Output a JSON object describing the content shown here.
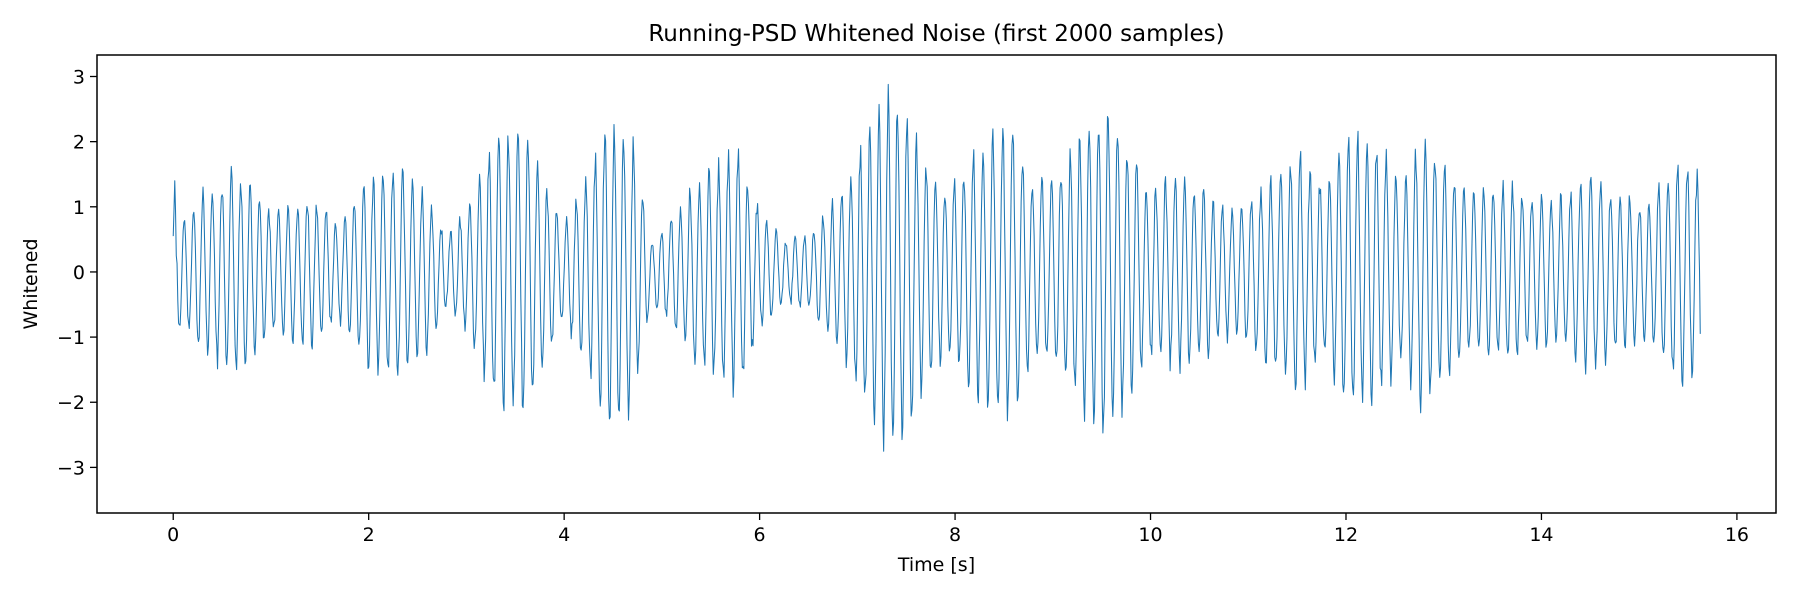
{
  "chart_data": {
    "type": "line",
    "title": "Running-PSD Whitened Noise (first 2000 samples)",
    "xlabel": "Time [s]",
    "ylabel": "Whitened",
    "xlim": [
      -0.78,
      16.4
    ],
    "ylim": [
      -3.7,
      3.33
    ],
    "xticks": [
      0,
      2,
      4,
      6,
      8,
      10,
      12,
      14,
      16
    ],
    "yticks": [
      -3,
      -2,
      -1,
      0,
      1,
      2,
      3
    ],
    "xtick_labels": [
      "0",
      "2",
      "4",
      "6",
      "8",
      "10",
      "12",
      "14",
      "16"
    ],
    "ytick_labels": [
      "−3",
      "−2",
      "−1",
      "0",
      "1",
      "2",
      "3"
    ],
    "grid": false,
    "legend": "none",
    "series_color": "#1f77b4",
    "series": [
      {
        "n_samples": 2000,
        "x_start": 0.0,
        "x_end": 15.625,
        "dominant_frequency_hz": 10.2,
        "envelope": {
          "t": [
            0.0,
            0.1,
            0.3,
            0.6,
            0.8,
            1.0,
            1.4,
            1.7,
            2.0,
            2.3,
            2.6,
            2.8,
            3.0,
            3.3,
            3.6,
            3.8,
            4.0,
            4.2,
            4.45,
            4.7,
            4.9,
            5.1,
            5.35,
            5.6,
            5.8,
            6.0,
            6.25,
            6.5,
            6.8,
            7.0,
            7.2,
            7.35,
            7.5,
            7.7,
            7.9,
            8.1,
            8.3,
            8.6,
            8.8,
            9.0,
            9.3,
            9.6,
            9.8,
            10.0,
            10.3,
            10.6,
            10.9,
            11.2,
            11.5,
            11.8,
            12.0,
            12.3,
            12.6,
            12.8,
            13.0,
            13.3,
            13.6,
            13.9,
            14.2,
            14.5,
            14.8,
            15.1,
            15.4,
            15.625
          ],
          "amp": [
            1.2,
            0.9,
            1.3,
            1.7,
            1.5,
            1.0,
            1.25,
            0.8,
            1.6,
            1.7,
            1.3,
            0.6,
            1.0,
            2.3,
            2.3,
            1.5,
            0.8,
            1.5,
            2.6,
            2.2,
            0.5,
            0.9,
            1.5,
            1.8,
            2.0,
            1.0,
            0.5,
            0.6,
            1.2,
            1.9,
            2.5,
            3.1,
            2.6,
            1.9,
            1.4,
            1.8,
            2.2,
            2.4,
            1.5,
            1.5,
            2.3,
            2.8,
            2.0,
            1.4,
            1.6,
            1.3,
            1.0,
            1.5,
            2.0,
            1.4,
            2.4,
            2.1,
            1.5,
            2.4,
            1.8,
            1.3,
            1.5,
            1.3,
            1.2,
            1.6,
            1.3,
            1.1,
            1.9,
            1.6
          ]
        }
      }
    ]
  }
}
